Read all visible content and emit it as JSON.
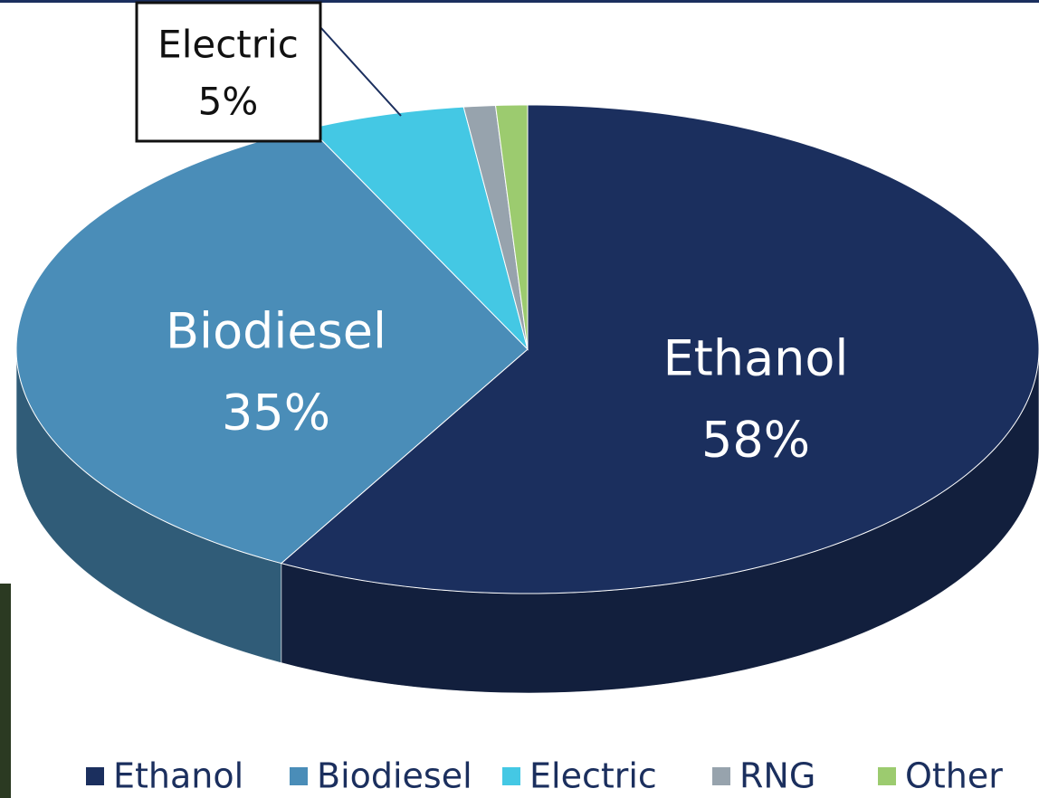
{
  "chart_data": {
    "type": "pie3d",
    "categories": [
      "Ethanol",
      "Biodiesel",
      "Electric",
      "RNG",
      "Other"
    ],
    "values": [
      58,
      35,
      5,
      1,
      1
    ],
    "value_labels": [
      "58%",
      "35%",
      "5%",
      null,
      null
    ],
    "colors": [
      "#1b2f5e",
      "#4a8db8",
      "#44c8e4",
      "#97a3ad",
      "#9ccb6f"
    ],
    "legend": "bottom"
  }
}
